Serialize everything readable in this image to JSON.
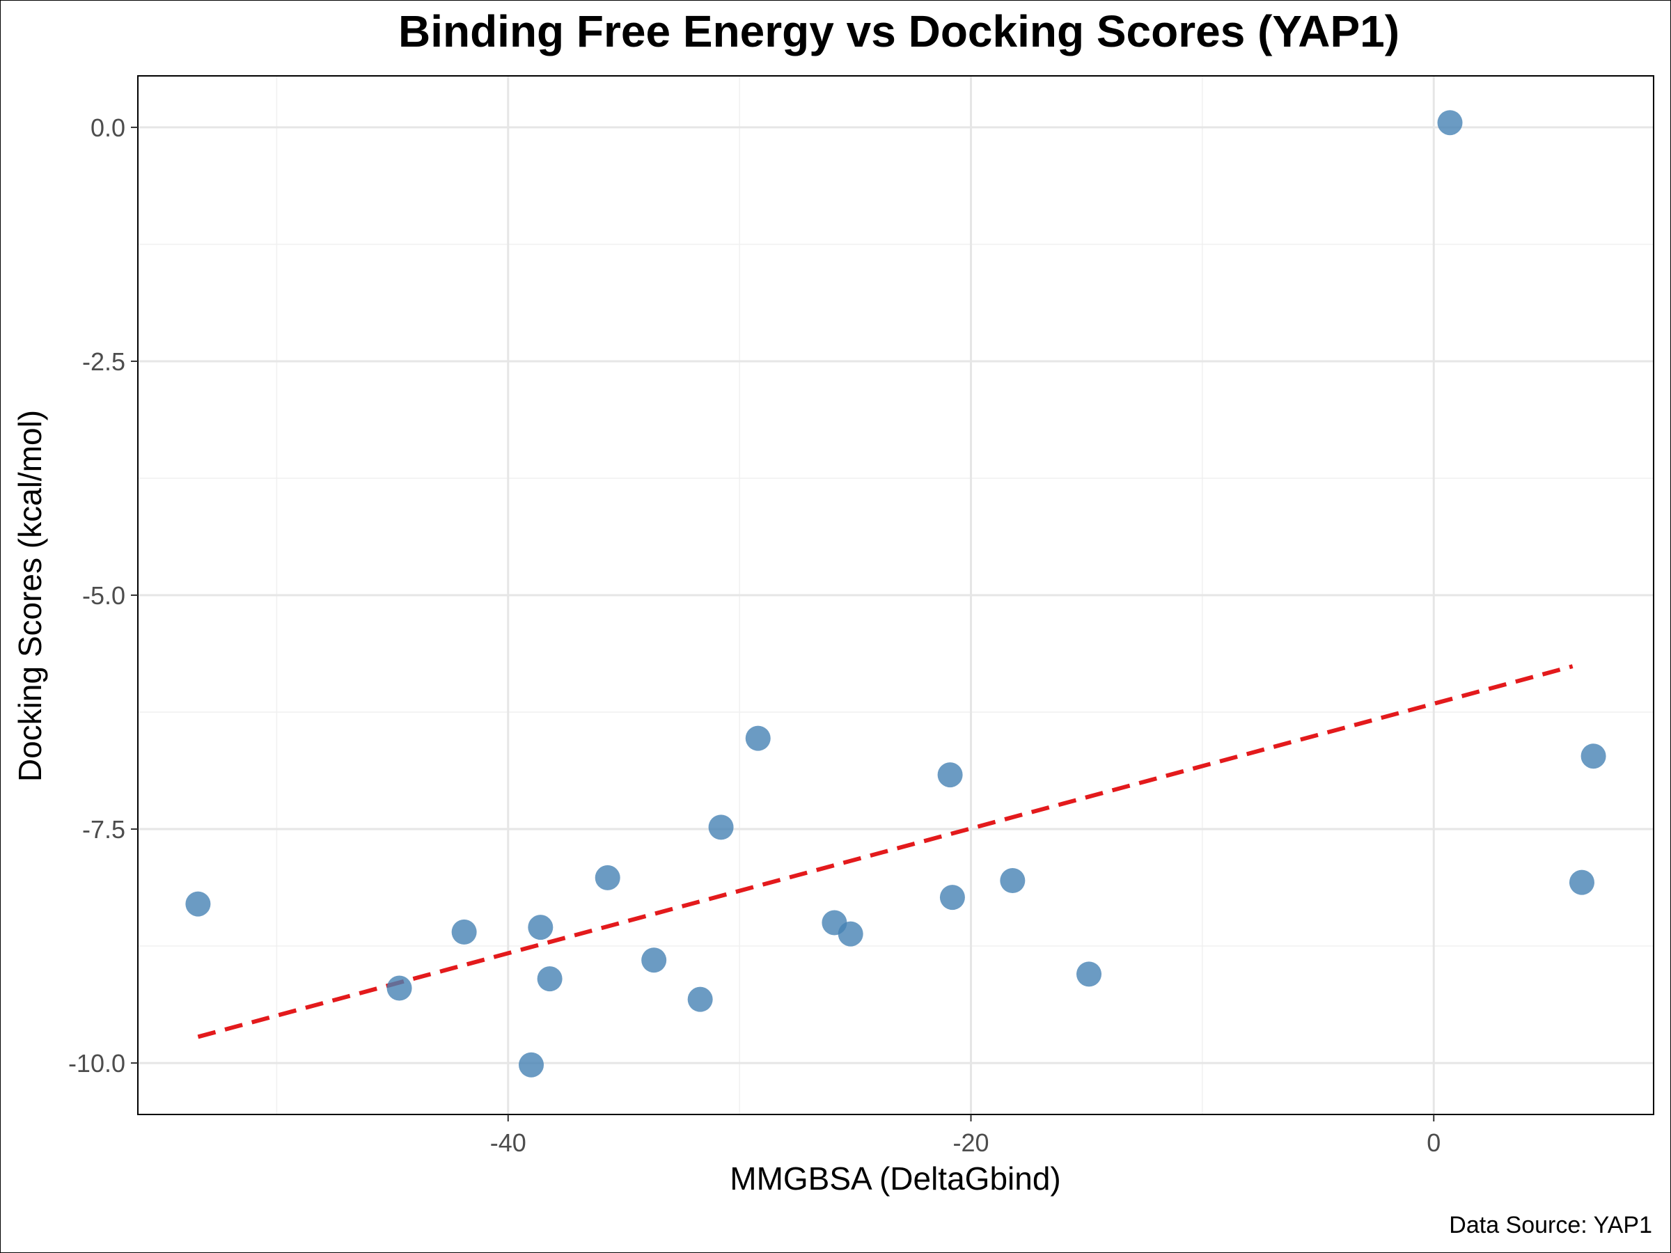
{
  "chart_data": {
    "type": "scatter",
    "title": "Binding Free Energy vs Docking Scores (YAP1)",
    "xlabel": "MMGBSA (DeltaGbind)",
    "ylabel": "Docking Scores (kcal/mol)",
    "caption": "Data Source: YAP1",
    "xlim": [
      -56,
      9.5
    ],
    "ylim": [
      -10.55,
      0.55
    ],
    "x_ticks": [
      -40,
      -20,
      0
    ],
    "x_tick_labels": [
      "-40",
      "-20",
      "0"
    ],
    "x_minor_ticks": [
      -50,
      -30,
      -10
    ],
    "y_ticks": [
      0,
      -2.5,
      -5,
      -7.5,
      -10
    ],
    "y_tick_labels": [
      "0.0",
      "-2.5",
      "-5.0",
      "-7.5",
      "-10.0"
    ],
    "y_minor_ticks": [
      -1.25,
      -3.75,
      -6.25,
      -8.75
    ],
    "grid": true,
    "point_color": "#4682b4",
    "trend_color": "#e31a1c",
    "points": [
      {
        "x": -53.4,
        "y": -8.3
      },
      {
        "x": -44.7,
        "y": -9.2
      },
      {
        "x": -41.9,
        "y": -8.6
      },
      {
        "x": -38.6,
        "y": -8.55
      },
      {
        "x": -38.2,
        "y": -9.1
      },
      {
        "x": -39.0,
        "y": -10.02
      },
      {
        "x": -35.7,
        "y": -8.02
      },
      {
        "x": -33.7,
        "y": -8.9
      },
      {
        "x": -31.7,
        "y": -9.32
      },
      {
        "x": -30.8,
        "y": -7.48
      },
      {
        "x": -29.2,
        "y": -6.53
      },
      {
        "x": -25.9,
        "y": -8.5
      },
      {
        "x": -25.2,
        "y": -8.62
      },
      {
        "x": -20.9,
        "y": -6.92
      },
      {
        "x": -20.8,
        "y": -8.23
      },
      {
        "x": -18.2,
        "y": -8.05
      },
      {
        "x": -14.9,
        "y": -9.05
      },
      {
        "x": 0.7,
        "y": 0.05
      },
      {
        "x": 6.4,
        "y": -8.07
      },
      {
        "x": 6.9,
        "y": -6.72
      }
    ],
    "trend_line": {
      "x": [
        -53.4,
        6.0
      ],
      "y": [
        -9.72,
        -5.76
      ]
    }
  }
}
